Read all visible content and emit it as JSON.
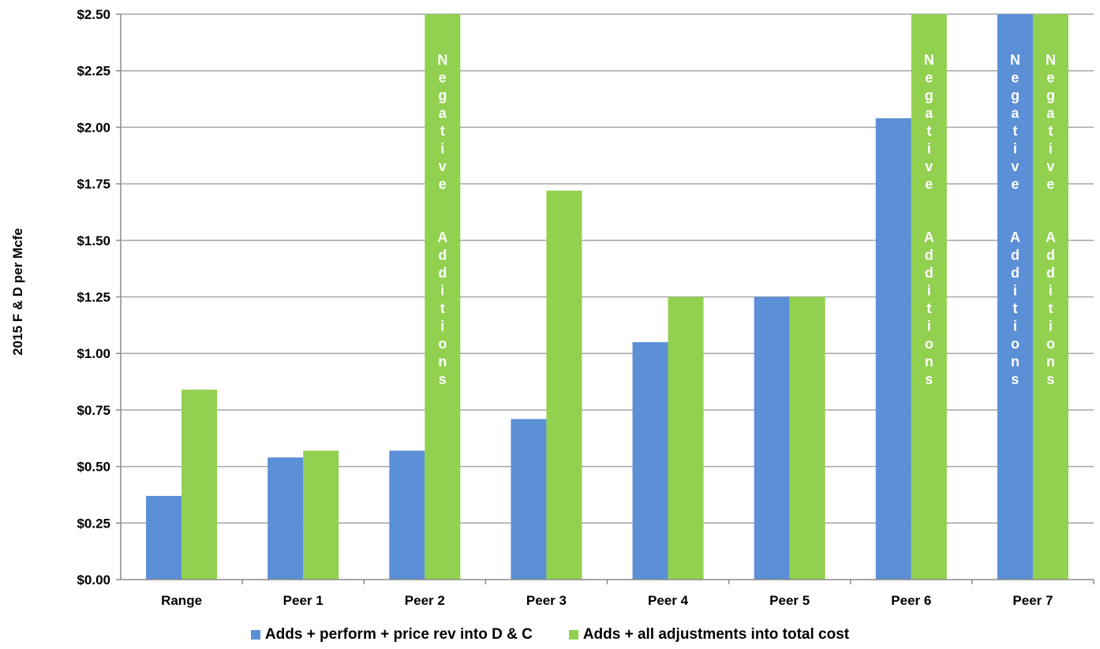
{
  "chart_data": {
    "type": "bar",
    "ylabel": "2015 F & D per Mcfe",
    "ylim": [
      0,
      2.5
    ],
    "yticks": [
      "$0.00",
      "$0.25",
      "$0.50",
      "$0.75",
      "$1.00",
      "$1.25",
      "$1.50",
      "$1.75",
      "$2.00",
      "$2.25",
      "$2.50"
    ],
    "categories": [
      "Range",
      "Peer 1",
      "Peer 2",
      "Peer 3",
      "Peer 4",
      "Peer 5",
      "Peer 6",
      "Peer 7"
    ],
    "grid": true,
    "legend_position": "bottom",
    "series": [
      {
        "name": "Adds + perform + price rev into D & C",
        "color": "#5b8fd6",
        "values": [
          0.37,
          0.54,
          0.57,
          0.71,
          1.05,
          1.25,
          2.04,
          2.5
        ],
        "labels": [
          "",
          "",
          "",
          "",
          "",
          "",
          "",
          "Negative Additions"
        ]
      },
      {
        "name": "Adds + all adjustments into total cost",
        "color": "#92d050",
        "values": [
          0.84,
          0.57,
          2.5,
          1.72,
          1.25,
          1.25,
          2.5,
          2.5
        ],
        "labels": [
          "",
          "",
          "Negative Additions",
          "",
          "",
          "",
          "Negative Additions",
          "Negative Additions"
        ]
      }
    ]
  }
}
